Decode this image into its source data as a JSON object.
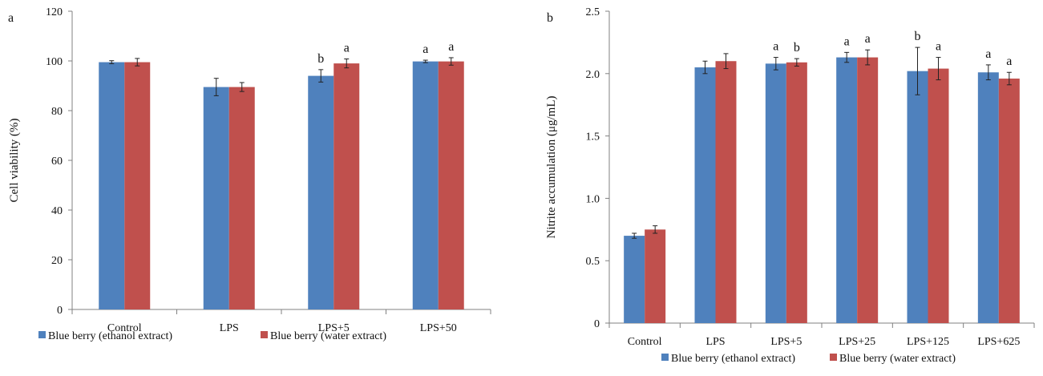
{
  "colors": {
    "series1": "#4f81bd",
    "series2": "#c0504d",
    "axis": "#808080",
    "errorbar": "#222222"
  },
  "chart_data": [
    {
      "panel": "a",
      "type": "bar",
      "title": "",
      "xlabel": "",
      "ylabel": "Cell viability (%)",
      "ylim": [
        0,
        120
      ],
      "yticks": [
        "0",
        "20",
        "40",
        "60",
        "80",
        "100",
        "120"
      ],
      "categories": [
        "Control",
        "LPS",
        "LPS+5",
        "LPS+50"
      ],
      "series": [
        {
          "name": "Blue berry (ethanol extract)",
          "values": [
            99.5,
            89.5,
            94,
            99.8
          ],
          "errors": [
            0.6,
            3.5,
            2.5,
            0.5
          ],
          "labels": [
            "",
            "",
            "b",
            "a"
          ]
        },
        {
          "name": "Blue berry (water extract)",
          "values": [
            99.5,
            89.5,
            99,
            99.8
          ],
          "errors": [
            1.5,
            1.8,
            1.8,
            1.5
          ],
          "labels": [
            "",
            "",
            "a",
            "a"
          ]
        }
      ],
      "grid": false,
      "legend": "bottom"
    },
    {
      "panel": "b",
      "type": "bar",
      "title": "",
      "xlabel": "",
      "ylabel": "Nitrite accumulation (μg/mL)",
      "ylim": [
        0,
        2.5
      ],
      "yticks": [
        "0",
        "0.5",
        "1.0",
        "1.5",
        "2.0",
        "2.5"
      ],
      "categories": [
        "Control",
        "LPS",
        "LPS+5",
        "LPS+25",
        "LPS+125",
        "LPS+625"
      ],
      "series": [
        {
          "name": "Blue berry (ethanol extract)",
          "values": [
            0.7,
            2.05,
            2.08,
            2.13,
            2.02,
            2.01
          ],
          "errors": [
            0.02,
            0.05,
            0.05,
            0.04,
            0.19,
            0.06
          ],
          "labels": [
            "",
            "",
            "a",
            "a",
            "b",
            "a"
          ]
        },
        {
          "name": "Blue berry (water extract)",
          "values": [
            0.75,
            2.1,
            2.09,
            2.13,
            2.04,
            1.96
          ],
          "errors": [
            0.03,
            0.06,
            0.03,
            0.06,
            0.09,
            0.05
          ],
          "labels": [
            "",
            "",
            "b",
            "a",
            "a",
            "a"
          ]
        }
      ],
      "grid": false,
      "legend": "bottom"
    }
  ]
}
